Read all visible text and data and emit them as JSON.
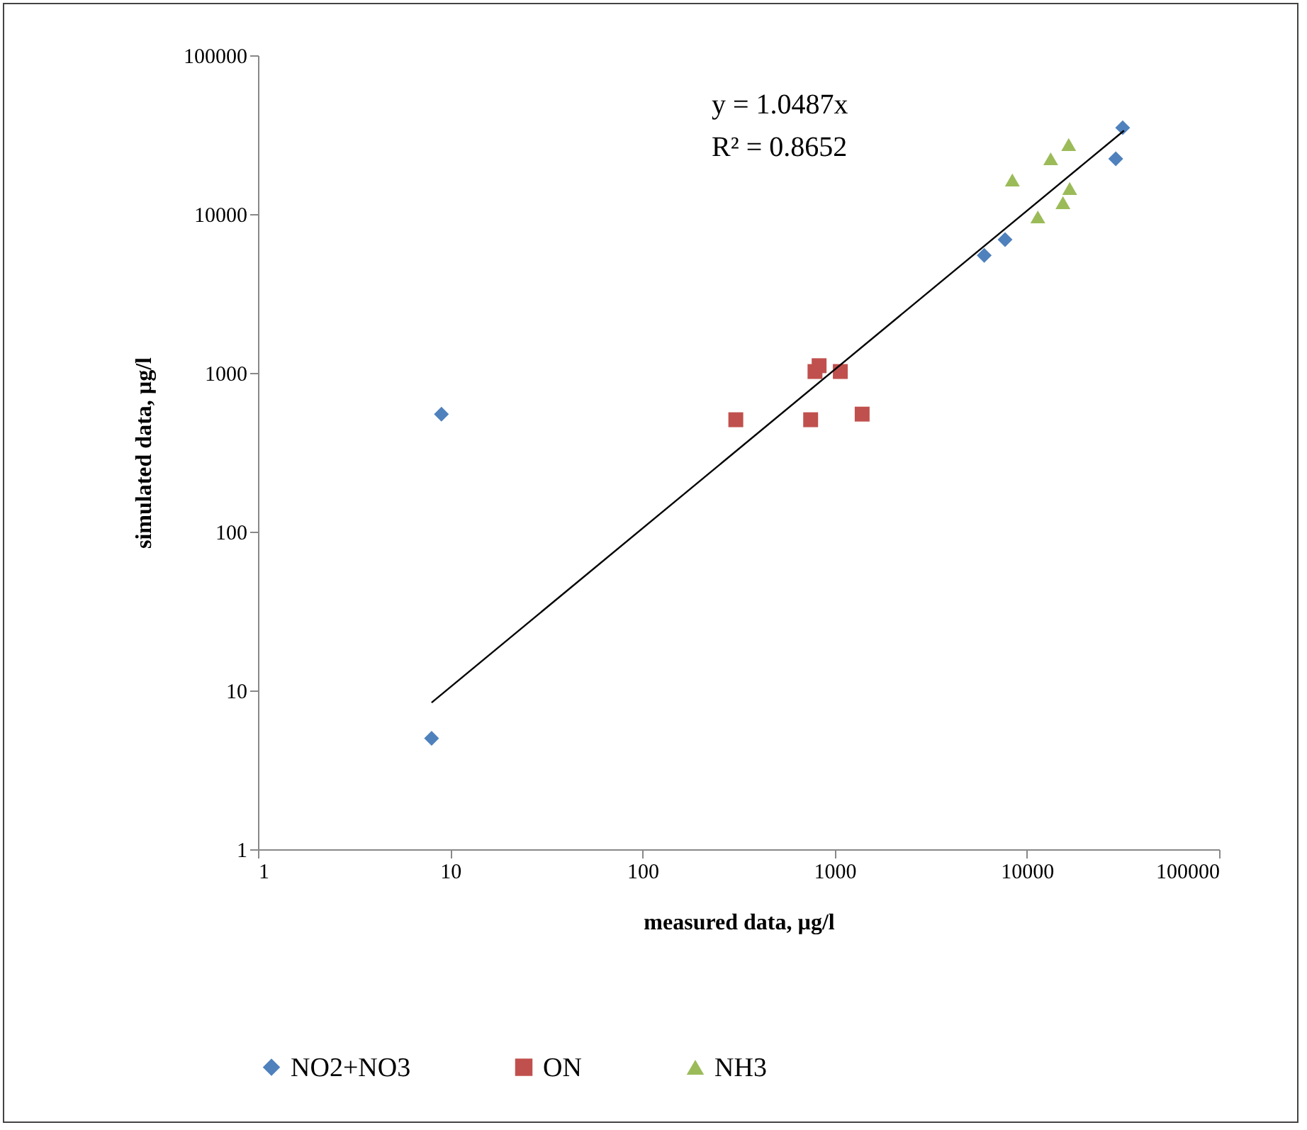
{
  "chart_data": {
    "type": "scatter",
    "xlabel": "measured data, µg/l",
    "ylabel": "simulated data, µg/l",
    "log": "xy",
    "legend": "bottom",
    "xlim": [
      1,
      100000
    ],
    "xticks": [
      1,
      10,
      100,
      1000,
      10000,
      100000
    ],
    "ylim": [
      1,
      100000
    ],
    "yticks": [
      1,
      10,
      100,
      1000,
      10000,
      100000
    ],
    "annotations": [
      "y = 1.0487x",
      "R² = 0.8652"
    ],
    "series": [
      {
        "name": "NO2+NO3",
        "color": "#4f81bd",
        "marker": "diamond",
        "x": [
          8,
          9,
          6000,
          7700,
          31500,
          29000
        ],
        "values": [
          5,
          550,
          5500,
          6900,
          35000,
          22300
        ]
      },
      {
        "name": "ON",
        "color": "#c0504d",
        "marker": "square",
        "x": [
          306,
          750,
          1390,
          830,
          790,
          1070
        ],
        "values": [
          507,
          507,
          550,
          1110,
          1020,
          1020
        ]
      },
      {
        "name": "NH3",
        "color": "#9bbb59",
        "marker": "triangle",
        "x": [
          8400,
          13300,
          16500,
          16700,
          15400,
          11400
        ],
        "values": [
          16400,
          22300,
          27400,
          14500,
          11800,
          9600
        ]
      },
      {
        "type": "line",
        "color": "#000000",
        "x": [
          8,
          32000
        ],
        "values": [
          8.39,
          33558
        ]
      }
    ]
  }
}
